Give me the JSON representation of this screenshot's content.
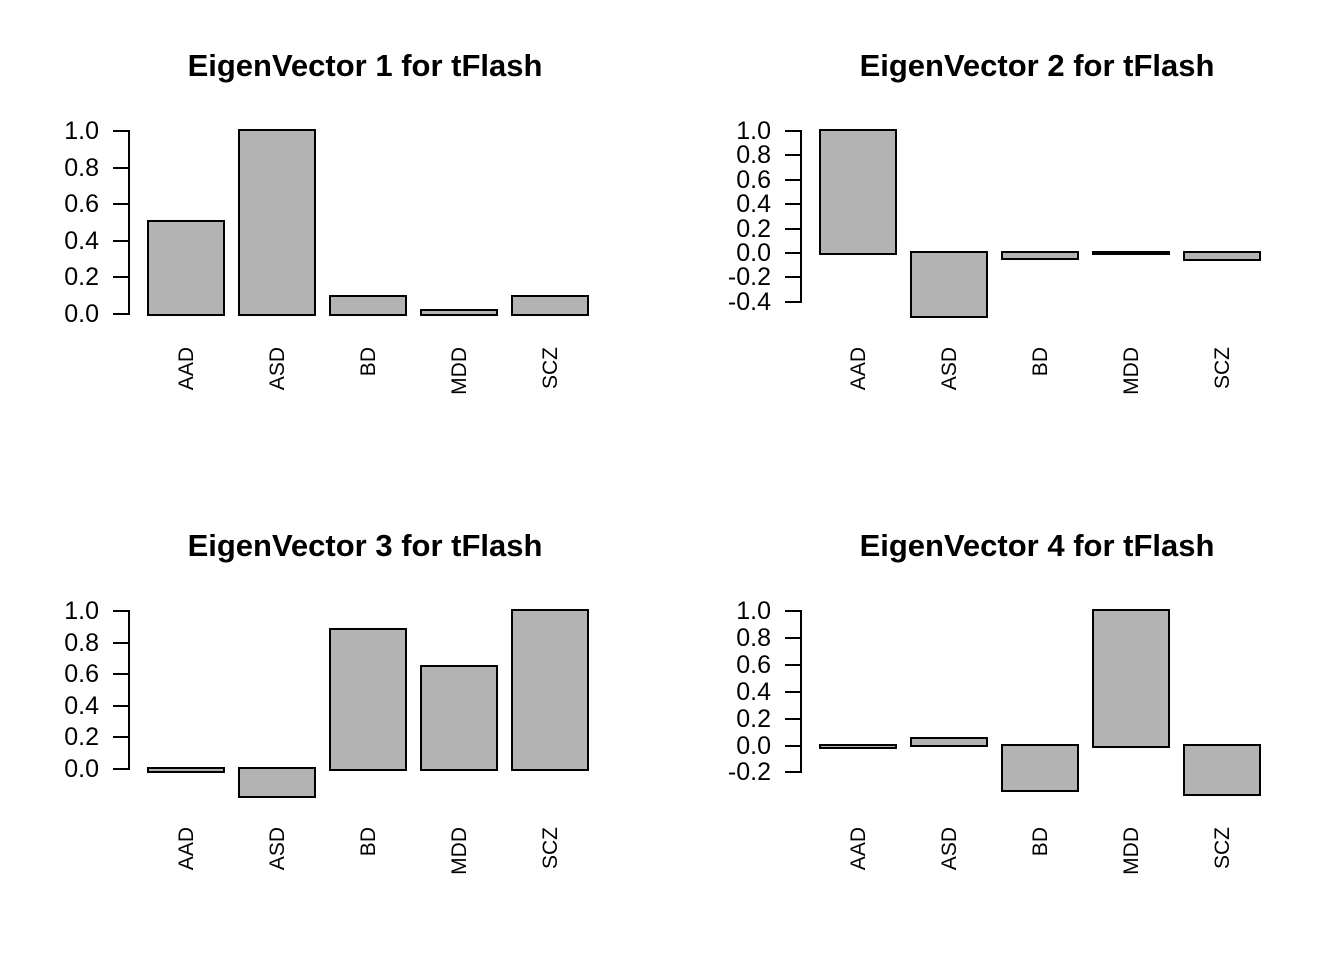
{
  "figure": {
    "background": "#ffffff",
    "bar_fill": "#b3b3b3",
    "bar_border": "#000000",
    "axis_color": "#000000",
    "text_color": "#000000"
  },
  "chart_data": [
    {
      "type": "bar",
      "title": "EigenVector 1 for tFlash",
      "categories": [
        "AAD",
        "ASD",
        "BD",
        "MDD",
        "SCZ"
      ],
      "values": [
        0.505,
        1.0,
        0.095,
        0.015,
        0.095
      ],
      "yticks": [
        0.0,
        0.2,
        0.4,
        0.6,
        0.8,
        1.0
      ],
      "ylim": [
        0,
        1
      ],
      "xlabel": "",
      "ylabel": "",
      "grid": false,
      "legend": null,
      "bar_orientation": "vertical",
      "category_label_rotation": "vertical"
    },
    {
      "type": "bar",
      "title": "EigenVector 2 for tFlash",
      "categories": [
        "AAD",
        "ASD",
        "BD",
        "MDD",
        "SCZ"
      ],
      "values": [
        1.0,
        -0.52,
        -0.04,
        0.0,
        -0.05
      ],
      "yticks": [
        -0.4,
        -0.2,
        0.0,
        0.2,
        0.4,
        0.6,
        0.8,
        1.0
      ],
      "ylim": [
        -0.5,
        1
      ],
      "xlabel": "",
      "ylabel": "",
      "grid": false,
      "legend": null,
      "bar_orientation": "vertical",
      "category_label_rotation": "vertical"
    },
    {
      "type": "bar",
      "title": "EigenVector 3 for tFlash",
      "categories": [
        "AAD",
        "ASD",
        "BD",
        "MDD",
        "SCZ"
      ],
      "values": [
        -0.015,
        -0.17,
        0.88,
        0.645,
        1.0
      ],
      "yticks": [
        0.0,
        0.2,
        0.4,
        0.6,
        0.8,
        1.0
      ],
      "ylim": [
        -0.16,
        1
      ],
      "xlabel": "",
      "ylabel": "",
      "grid": false,
      "legend": null,
      "bar_orientation": "vertical",
      "category_label_rotation": "vertical"
    },
    {
      "type": "bar",
      "title": "EigenVector 4 for tFlash",
      "categories": [
        "AAD",
        "ASD",
        "BD",
        "MDD",
        "SCZ"
      ],
      "values": [
        -0.01,
        0.05,
        -0.33,
        1.0,
        -0.36
      ],
      "yticks": [
        -0.2,
        0.0,
        0.2,
        0.4,
        0.6,
        0.8,
        1.0
      ],
      "ylim": [
        -0.36,
        1
      ],
      "xlabel": "",
      "ylabel": "",
      "grid": false,
      "legend": null,
      "bar_orientation": "vertical",
      "category_label_rotation": "vertical"
    }
  ]
}
